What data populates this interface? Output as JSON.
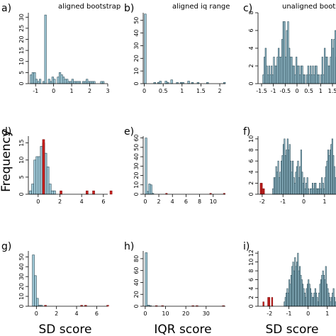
{
  "figure": {
    "ylabel": "Frequency",
    "xlabels": [
      "SD score",
      "IQR score",
      "SD score"
    ]
  },
  "chart_data": [
    {
      "type": "bar",
      "panel_label": "a)",
      "title": "aligned bootstrap",
      "xlim": [
        -1.4,
        3.0
      ],
      "ylim": [
        0,
        32
      ],
      "xticks": [
        -1,
        0,
        1,
        2,
        3
      ],
      "yticks": [
        0,
        5,
        10,
        15,
        20,
        25,
        30
      ],
      "bin_width": 0.1,
      "bin_start": -1.3,
      "values": [
        4,
        5,
        5,
        2,
        1,
        2,
        0,
        1,
        31,
        0,
        2,
        1,
        3,
        2,
        0,
        3,
        5,
        4,
        3,
        2,
        2,
        1,
        1,
        2,
        1,
        1,
        1,
        1,
        0,
        1,
        1,
        2,
        1,
        1,
        1,
        1,
        0,
        0,
        0,
        1,
        1,
        0,
        0,
        0
      ],
      "highlight_values": []
    },
    {
      "type": "bar",
      "panel_label": "b)",
      "title": "aligned iq range",
      "xlim": [
        -0.03,
        2.15
      ],
      "ylim": [
        0,
        56
      ],
      "xticks": [
        0.0,
        0.5,
        1.0,
        1.5,
        2.0
      ],
      "yticks": [
        0,
        10,
        20,
        30,
        40,
        50
      ],
      "bin_width": 0.05,
      "bin_start": 0.0,
      "values": [
        55,
        0,
        0,
        0,
        0,
        1,
        0,
        1,
        2,
        0,
        0,
        2,
        1,
        0,
        3,
        0,
        0,
        1,
        0,
        1,
        1,
        0,
        0,
        2,
        0,
        1,
        0,
        0,
        1,
        0,
        0,
        0,
        0,
        1,
        0,
        0,
        0,
        0,
        0,
        0,
        0,
        0,
        1,
        0
      ],
      "highlight_values": []
    },
    {
      "type": "bar",
      "panel_label": "c)",
      "title": "unaligned bootstrap",
      "xlim": [
        -1.65,
        1.65
      ],
      "ylim": [
        0,
        8
      ],
      "xticks": [
        -1.5,
        -1.0,
        -0.5,
        0.0,
        0.5,
        1.0,
        1.5
      ],
      "yticks": [
        0,
        2,
        4,
        6,
        8
      ],
      "bin_width": 0.05,
      "bin_start": -1.6,
      "values": [
        0,
        0,
        0,
        1,
        3,
        4,
        2,
        1,
        2,
        1,
        2,
        1,
        3,
        2,
        2,
        3,
        4,
        3,
        3,
        5,
        7,
        7,
        3,
        6,
        7,
        4,
        3,
        3,
        2,
        2,
        1,
        3,
        2,
        2,
        1,
        2,
        2,
        1,
        1,
        0,
        1,
        2,
        1,
        2,
        1,
        2,
        1,
        2,
        2,
        1,
        1,
        0,
        1,
        3,
        1,
        4,
        3,
        3,
        2,
        2,
        3,
        5,
        4,
        5,
        6,
        3
      ],
      "highlight_values": []
    },
    {
      "type": "bar",
      "panel_label": "d)",
      "title": "",
      "xlim": [
        -0.9,
        6.4
      ],
      "ylim": [
        0,
        17
      ],
      "xticks": [
        0,
        2,
        4,
        6
      ],
      "yticks": [
        0,
        5,
        10,
        15
      ],
      "bin_width": 0.2,
      "bin_start": -0.8,
      "values": [
        1,
        3,
        10,
        11,
        11,
        14,
        15,
        12,
        8,
        3,
        1,
        1,
        0,
        0,
        0,
        0,
        0,
        0,
        0,
        0,
        0,
        0,
        0,
        0,
        0,
        0,
        0,
        0,
        0,
        0,
        0,
        0,
        0,
        0,
        0,
        0,
        0,
        0
      ],
      "highlight_values": [
        0,
        0,
        0,
        0,
        0,
        0,
        16,
        0,
        0,
        0,
        0,
        0,
        0,
        0,
        1,
        0,
        0,
        0,
        0,
        0,
        0,
        0,
        0,
        0,
        0,
        0,
        1,
        0,
        0,
        1,
        0,
        0,
        0,
        0,
        0,
        0,
        0,
        1
      ]
    },
    {
      "type": "bar",
      "panel_label": "e)",
      "title": "",
      "xlim": [
        -0.3,
        11.8
      ],
      "ylim": [
        0,
        62
      ],
      "xticks": [
        0,
        2,
        4,
        6,
        8,
        10
      ],
      "yticks": [
        0,
        10,
        20,
        30,
        40,
        50,
        60
      ],
      "bin_width": 0.25,
      "bin_start": 0.0,
      "values": [
        60,
        3,
        11,
        10,
        1,
        0,
        0,
        0,
        0,
        0,
        0,
        0,
        0,
        0,
        0,
        0,
        0,
        0,
        0,
        0,
        0,
        0,
        0,
        0,
        0,
        0,
        0,
        0,
        0,
        0,
        0,
        0,
        0,
        0,
        0,
        0,
        0,
        0,
        0,
        0,
        0,
        0,
        0,
        0,
        0,
        0,
        0
      ],
      "highlight_values": [
        0,
        0,
        0,
        0,
        0,
        0,
        0,
        0,
        0,
        0,
        0,
        0,
        1,
        0,
        0,
        0,
        0,
        0,
        0,
        0,
        0,
        0,
        0,
        0,
        0,
        0,
        0,
        0,
        0,
        0,
        0,
        0,
        0,
        0,
        0,
        0,
        0,
        0,
        1,
        0,
        0,
        0,
        0,
        0,
        0,
        0,
        1
      ]
    },
    {
      "type": "bar",
      "panel_label": "f)",
      "title": "",
      "xlim": [
        -2.2,
        1.55
      ],
      "ylim": [
        0,
        10.5
      ],
      "xticks": [
        -2,
        -1,
        0,
        1
      ],
      "yticks": [
        0,
        2,
        4,
        6,
        8,
        10
      ],
      "bin_width": 0.05,
      "bin_start": -2.2,
      "values": [
        0,
        0,
        0,
        0,
        0,
        0,
        0,
        0,
        0,
        0,
        0,
        0,
        0,
        0,
        1,
        3,
        3,
        5,
        4,
        6,
        3,
        4,
        6,
        7,
        9,
        10,
        7,
        8,
        10,
        8,
        9,
        6,
        4,
        6,
        3,
        2,
        4,
        5,
        6,
        3,
        5,
        8,
        4,
        2,
        3,
        1,
        2,
        3,
        1,
        0,
        1,
        1,
        2,
        1,
        2,
        2,
        1,
        1,
        1,
        2,
        1,
        3,
        2,
        1,
        3,
        5,
        6,
        8,
        7,
        8,
        9,
        10,
        7,
        5,
        3
      ],
      "highlight_values": [
        0,
        0,
        2,
        2,
        1,
        1,
        0,
        0,
        0,
        0,
        0,
        0,
        0,
        0,
        0,
        0,
        0,
        0,
        0,
        0,
        0,
        0,
        0,
        0,
        0,
        0,
        0,
        0,
        0,
        0,
        0,
        0,
        0,
        0,
        0,
        0,
        0,
        0,
        0,
        0,
        0,
        0,
        0,
        0,
        0,
        0,
        0,
        0,
        0,
        0,
        0,
        0,
        0,
        0,
        0,
        0,
        0,
        0,
        0,
        0,
        0,
        0,
        0,
        0,
        0,
        0,
        0,
        0,
        0,
        0,
        0,
        0,
        0,
        0,
        0
      ]
    },
    {
      "type": "bar",
      "panel_label": "g)",
      "title": "",
      "xlim": [
        -0.8,
        7.1
      ],
      "ylim": [
        0,
        56
      ],
      "xticks": [
        0,
        2,
        4,
        6
      ],
      "yticks": [
        0,
        10,
        20,
        30,
        40,
        50
      ],
      "bin_width": 0.2,
      "bin_start": -0.4,
      "values": [
        52,
        31,
        8,
        1,
        1,
        0,
        0,
        0,
        0,
        0,
        0,
        0,
        0,
        0,
        0,
        0,
        0,
        0,
        0,
        0,
        0,
        0,
        0,
        0,
        0,
        0,
        0,
        0,
        0,
        0,
        0,
        0,
        0,
        0,
        0,
        0,
        0,
        0
      ],
      "highlight_values": [
        0,
        0,
        0,
        0,
        0,
        0,
        1,
        0,
        0,
        0,
        0,
        0,
        0,
        0,
        0,
        0,
        0,
        0,
        0,
        0,
        0,
        0,
        0,
        0,
        1,
        0,
        1,
        0,
        0,
        0,
        0,
        0,
        0,
        0,
        0,
        0,
        0,
        1
      ]
    },
    {
      "type": "bar",
      "panel_label": "h)",
      "title": "",
      "xlim": [
        -1.0,
        39.5
      ],
      "ylim": [
        0,
        93
      ],
      "xticks": [
        0,
        10,
        20,
        30,
        40
      ],
      "yticks": [
        0,
        20,
        40,
        60,
        80
      ],
      "bin_width": 1.0,
      "bin_start": 0.0,
      "values": [
        90,
        2,
        1,
        0,
        0,
        0,
        0,
        0,
        0,
        0,
        0,
        0,
        0,
        0,
        0,
        0,
        0,
        0,
        0,
        0,
        0,
        0,
        0,
        0,
        0,
        0,
        0,
        0,
        0,
        0,
        0,
        0,
        0,
        0,
        0,
        0,
        0,
        0,
        0
      ],
      "highlight_values": [
        0,
        0,
        0,
        0,
        0,
        1,
        0,
        0,
        1,
        0,
        0,
        0,
        0,
        0,
        0,
        0,
        0,
        0,
        0,
        0,
        0,
        0,
        0,
        1,
        0,
        1,
        0,
        0,
        0,
        0,
        0,
        0,
        0,
        0,
        0,
        0,
        0,
        0,
        1
      ]
    },
    {
      "type": "bar",
      "panel_label": "i)",
      "title": "",
      "xlim": [
        -2.6,
        1.45
      ],
      "ylim": [
        0,
        12.5
      ],
      "xticks": [
        -2,
        -1,
        0,
        1
      ],
      "yticks": [
        0,
        2,
        4,
        6,
        8,
        10,
        12
      ],
      "bin_width": 0.05,
      "bin_start": -2.6,
      "values": [
        0,
        0,
        0,
        0,
        0,
        0,
        0,
        0,
        0,
        0,
        0,
        0,
        0,
        0,
        0,
        0,
        0,
        0,
        0,
        0,
        0,
        0,
        0,
        0,
        0,
        0,
        0,
        1,
        2,
        3,
        4,
        3,
        6,
        5,
        7,
        9,
        10,
        8,
        11,
        9,
        10,
        12,
        8,
        9,
        7,
        6,
        5,
        4,
        3,
        2,
        4,
        5,
        6,
        5,
        4,
        3,
        2,
        2,
        3,
        4,
        3,
        2,
        1,
        3,
        5,
        6,
        7,
        8,
        7,
        6,
        9,
        5,
        4,
        3,
        2,
        1,
        2,
        3,
        4,
        2,
        1
      ],
      "highlight_values": [
        0,
        0,
        0,
        0,
        0,
        1,
        0,
        0,
        0,
        0,
        2,
        2,
        0,
        0,
        2,
        0,
        0,
        0,
        0,
        0,
        0,
        0,
        0,
        0,
        0,
        0,
        0,
        0,
        0,
        0,
        0,
        0,
        0,
        0,
        0,
        0,
        0,
        0,
        0,
        0,
        0,
        0,
        0,
        0,
        0,
        0,
        0,
        0,
        0,
        0,
        0,
        0,
        0,
        0,
        0,
        0,
        0,
        0,
        0,
        0,
        0,
        0,
        0,
        0,
        0,
        0,
        0,
        0,
        0,
        0,
        0,
        0,
        0,
        0,
        0,
        0,
        0,
        0,
        0,
        0,
        0
      ]
    }
  ],
  "colors": {
    "bar_fill": "#9fc8d6",
    "bar_edge": "#2b4a56",
    "highlight_fill": "#c8201e",
    "highlight_edge": "#7a1010",
    "axis": "#000000"
  }
}
